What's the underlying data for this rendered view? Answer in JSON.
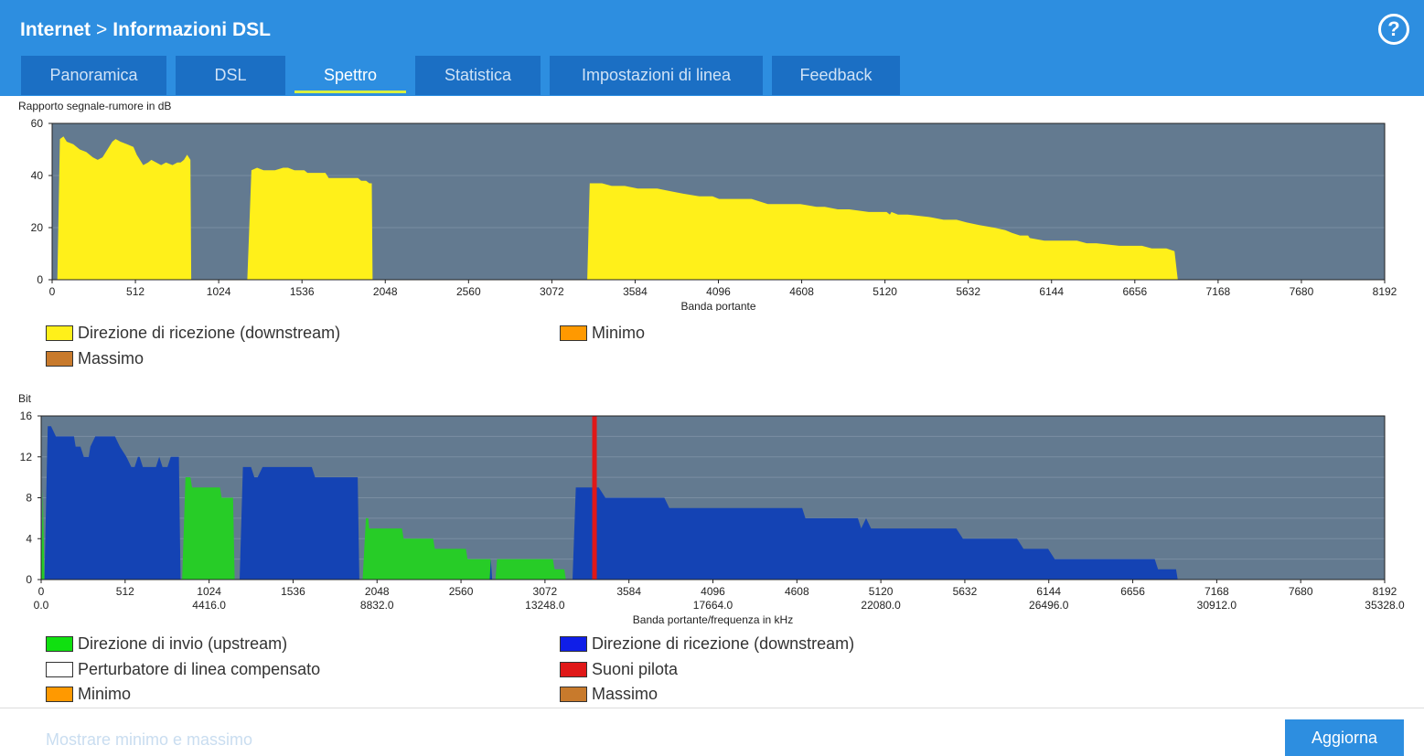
{
  "header": {
    "crumb_parent": "Internet",
    "crumb_sep": ">",
    "crumb_current": "Informazioni DSL",
    "help_symbol": "?",
    "help_icon": "question-circle-icon"
  },
  "tabs": [
    {
      "label": "Panoramica",
      "active": false
    },
    {
      "label": "DSL",
      "active": false
    },
    {
      "label": "Spettro",
      "active": true
    },
    {
      "label": "Statistica",
      "active": false
    },
    {
      "label": "Impostazioni di linea",
      "active": false
    },
    {
      "label": "Feedback",
      "active": false
    }
  ],
  "chart_data": [
    {
      "type": "area",
      "title": "Rapporto segnale-rumore in dB",
      "xlabel": "Banda portante",
      "ylabel": "Rapporto segnale-rumore in dB",
      "xlim": [
        0,
        8192
      ],
      "ylim": [
        0,
        60
      ],
      "yticks": [
        0,
        20,
        40,
        60
      ],
      "xticks": [
        0,
        512,
        1024,
        1536,
        2048,
        2560,
        3072,
        3584,
        4096,
        4608,
        5120,
        5632,
        6144,
        6656,
        7168,
        7680,
        8192
      ],
      "grid": true,
      "background_color": "#637a90",
      "series": [
        {
          "name": "Direzione di ricezione (downstream)",
          "color": "#fff01a",
          "segments": [
            [
              [
                32,
                0
              ],
              [
                48,
                54
              ],
              [
                70,
                55
              ],
              [
                90,
                53
              ],
              [
                130,
                52
              ],
              [
                170,
                50
              ],
              [
                210,
                49
              ],
              [
                250,
                47
              ],
              [
                280,
                46
              ],
              [
                310,
                47
              ],
              [
                340,
                50
              ],
              [
                370,
                53
              ],
              [
                390,
                54
              ],
              [
                420,
                53
              ],
              [
                460,
                52
              ],
              [
                500,
                51
              ],
              [
                520,
                48
              ],
              [
                540,
                46
              ],
              [
                560,
                44
              ],
              [
                590,
                45
              ],
              [
                610,
                46
              ],
              [
                640,
                45
              ],
              [
                670,
                44
              ],
              [
                700,
                45
              ],
              [
                740,
                44
              ],
              [
                770,
                45
              ],
              [
                790,
                45
              ],
              [
                810,
                46
              ],
              [
                830,
                48
              ],
              [
                850,
                46
              ],
              [
                855,
                0
              ]
            ],
            [
              [
                1200,
                0
              ],
              [
                1225,
                42
              ],
              [
                1260,
                43
              ],
              [
                1300,
                42
              ],
              [
                1370,
                42
              ],
              [
                1420,
                43
              ],
              [
                1450,
                43
              ],
              [
                1490,
                42
              ],
              [
                1550,
                42
              ],
              [
                1570,
                41
              ],
              [
                1620,
                41
              ],
              [
                1680,
                41
              ],
              [
                1700,
                39
              ],
              [
                1730,
                39
              ],
              [
                1780,
                39
              ],
              [
                1880,
                39
              ],
              [
                1900,
                38
              ],
              [
                1930,
                38
              ],
              [
                1950,
                37
              ],
              [
                1965,
                37
              ],
              [
                1970,
                0
              ]
            ],
            [
              [
                3290,
                0
              ],
              [
                3305,
                37
              ],
              [
                3380,
                37
              ],
              [
                3440,
                36
              ],
              [
                3520,
                36
              ],
              [
                3600,
                35
              ],
              [
                3720,
                35
              ],
              [
                3800,
                34
              ],
              [
                3880,
                33
              ],
              [
                3980,
                32
              ],
              [
                4060,
                32
              ],
              [
                4100,
                31
              ],
              [
                4180,
                31
              ],
              [
                4250,
                31
              ],
              [
                4300,
                31
              ],
              [
                4400,
                29
              ],
              [
                4600,
                29
              ],
              [
                4700,
                28
              ],
              [
                4750,
                28
              ],
              [
                4830,
                27
              ],
              [
                4900,
                27
              ],
              [
                5020,
                26
              ],
              [
                5130,
                26
              ],
              [
                5150,
                25
              ],
              [
                5160,
                26
              ],
              [
                5200,
                25
              ],
              [
                5260,
                25
              ],
              [
                5400,
                24
              ],
              [
                5480,
                23
              ],
              [
                5560,
                23
              ],
              [
                5620,
                22
              ],
              [
                5700,
                21
              ],
              [
                5790,
                20
              ],
              [
                5860,
                19
              ],
              [
                5900,
                18
              ],
              [
                5950,
                17
              ],
              [
                6000,
                17
              ],
              [
                6010,
                16
              ],
              [
                6100,
                15
              ],
              [
                6300,
                15
              ],
              [
                6360,
                14
              ],
              [
                6420,
                14
              ],
              [
                6560,
                13
              ],
              [
                6700,
                13
              ],
              [
                6760,
                12
              ],
              [
                6850,
                12
              ],
              [
                6900,
                11
              ],
              [
                6920,
                0
              ]
            ]
          ]
        }
      ],
      "legend": [
        {
          "label": "Direzione di ricezione (downstream)",
          "color": "#fff01a"
        },
        {
          "label": "Minimo",
          "color": "#ff9900"
        },
        {
          "label": "Massimo",
          "color": "#c87a2c"
        }
      ]
    },
    {
      "type": "area",
      "title": "Bit",
      "xlabel": "Banda portante/frequenza in kHz",
      "ylabel": "Bit",
      "xlim": [
        0,
        8192
      ],
      "ylim": [
        0,
        16
      ],
      "yticks": [
        0,
        4,
        8,
        12,
        16
      ],
      "xticks": [
        0,
        512,
        1024,
        1536,
        2048,
        2560,
        3072,
        3584,
        4096,
        4608,
        5120,
        5632,
        6144,
        6656,
        7168,
        7680,
        8192
      ],
      "xticks_khz": [
        {
          "x": 0,
          "label": "0.0"
        },
        {
          "x": 1024,
          "label": "4416.0"
        },
        {
          "x": 2048,
          "label": "8832.0"
        },
        {
          "x": 3072,
          "label": "13248.0"
        },
        {
          "x": 4096,
          "label": "17664.0"
        },
        {
          "x": 5120,
          "label": "22080.0"
        },
        {
          "x": 6144,
          "label": "26496.0"
        },
        {
          "x": 7168,
          "label": "30912.0"
        },
        {
          "x": 8192,
          "label": "35328.0"
        }
      ],
      "grid": true,
      "background_color": "#637a90",
      "series": [
        {
          "name": "Direzione di invio (upstream)",
          "color": "#27cc27",
          "segments": [
            [
              [
                0,
                0
              ],
              [
                10,
                9
              ],
              [
                20,
                0
              ]
            ],
            [
              [
                860,
                0
              ],
              [
                880,
                10
              ],
              [
                910,
                10
              ],
              [
                920,
                9
              ],
              [
                1090,
                9
              ],
              [
                1100,
                8
              ],
              [
                1170,
                8
              ],
              [
                1180,
                0
              ]
            ],
            [
              [
                1960,
                0
              ],
              [
                1980,
                6
              ],
              [
                1995,
                6
              ],
              [
                2000,
                5
              ],
              [
                2200,
                5
              ],
              [
                2210,
                4
              ],
              [
                2390,
                4
              ],
              [
                2400,
                3
              ],
              [
                2590,
                3
              ],
              [
                2600,
                2
              ],
              [
                2740,
                2
              ],
              [
                2750,
                0
              ]
            ],
            [
              [
                2770,
                0
              ],
              [
                2780,
                2
              ],
              [
                3120,
                2
              ],
              [
                3130,
                1
              ],
              [
                3190,
                1
              ],
              [
                3200,
                0
              ]
            ]
          ]
        },
        {
          "name": "Direzione di ricezione (downstream)",
          "color": "#1443b4",
          "segments": [
            [
              [
                20,
                0
              ],
              [
                40,
                15
              ],
              [
                60,
                15
              ],
              [
                90,
                14
              ],
              [
                200,
                14
              ],
              [
                210,
                13
              ],
              [
                240,
                13
              ],
              [
                260,
                12
              ],
              [
                290,
                12
              ],
              [
                300,
                13
              ],
              [
                330,
                14
              ],
              [
                450,
                14
              ],
              [
                480,
                13
              ],
              [
                520,
                12
              ],
              [
                550,
                11
              ],
              [
                570,
                11
              ],
              [
                590,
                12
              ],
              [
                600,
                12
              ],
              [
                620,
                11
              ],
              [
                700,
                11
              ],
              [
                720,
                12
              ],
              [
                740,
                11
              ],
              [
                770,
                11
              ],
              [
                790,
                12
              ],
              [
                840,
                12
              ],
              [
                850,
                0
              ]
            ],
            [
              [
                1210,
                0
              ],
              [
                1230,
                11
              ],
              [
                1280,
                11
              ],
              [
                1300,
                10
              ],
              [
                1320,
                10
              ],
              [
                1350,
                11
              ],
              [
                1650,
                11
              ],
              [
                1670,
                10
              ],
              [
                1930,
                10
              ],
              [
                1940,
                0
              ]
            ],
            [
              [
                2735,
                0
              ],
              [
                2742,
                2
              ],
              [
                2750,
                0
              ]
            ],
            [
              [
                3240,
                0
              ],
              [
                3260,
                9
              ],
              [
                3400,
                9
              ],
              [
                3440,
                8
              ],
              [
                3800,
                8
              ],
              [
                3830,
                7
              ],
              [
                4640,
                7
              ],
              [
                4660,
                6
              ],
              [
                4980,
                6
              ],
              [
                5000,
                5
              ],
              [
                5030,
                6
              ],
              [
                5060,
                5
              ],
              [
                5580,
                5
              ],
              [
                5620,
                4
              ],
              [
                5950,
                4
              ],
              [
                5990,
                3
              ],
              [
                6140,
                3
              ],
              [
                6180,
                2
              ],
              [
                6790,
                2
              ],
              [
                6810,
                1
              ],
              [
                6920,
                1
              ],
              [
                6930,
                0
              ]
            ]
          ]
        }
      ],
      "pilot_tones": [
        {
          "x": 3374,
          "color": "#e01818"
        }
      ],
      "legend": [
        {
          "label": "Direzione di invio (upstream)",
          "color": "#10e010"
        },
        {
          "label": "Direzione di ricezione (downstream)",
          "color": "#0f1ee8"
        },
        {
          "label": "Perturbatore di linea compensato",
          "color": "#ffffff"
        },
        {
          "label": "Suoni pilota",
          "color": "#e01818"
        },
        {
          "label": "Minimo",
          "color": "#ff9900"
        },
        {
          "label": "Massimo",
          "color": "#c87a2c"
        }
      ]
    }
  ],
  "footer": {
    "show_minmax_label": "Mostrare minimo e massimo",
    "refresh_label": "Aggiorna"
  }
}
